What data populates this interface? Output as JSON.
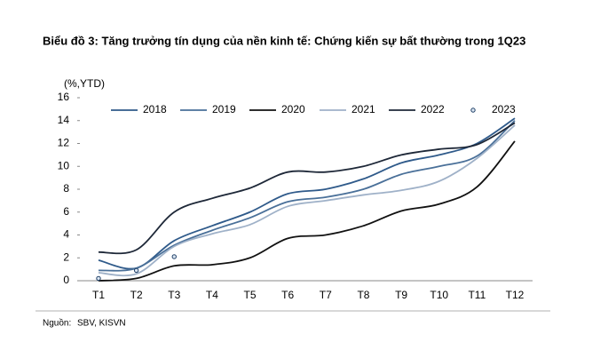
{
  "chart_data": {
    "type": "line",
    "title": "Biểu đồ 3: Tăng trưởng tín dụng của nền kinh tế: Chứng kiến sự bất thường trong 1Q23",
    "y_label": "(%,YTD)",
    "categories": [
      "T1",
      "T2",
      "T3",
      "T4",
      "T5",
      "T6",
      "T7",
      "T8",
      "T9",
      "T10",
      "T11",
      "T12"
    ],
    "series": [
      {
        "name": "2018",
        "color": "#2f5a8a",
        "style": "line",
        "values": [
          1.8,
          1.1,
          3.5,
          4.8,
          6.0,
          7.6,
          8.0,
          8.9,
          10.3,
          11.0,
          12.0,
          14.2
        ]
      },
      {
        "name": "2019",
        "color": "#4a7099",
        "style": "line",
        "values": [
          0.9,
          1.1,
          3.1,
          4.4,
          5.5,
          6.9,
          7.3,
          8.0,
          9.3,
          10.0,
          10.9,
          14.0
        ]
      },
      {
        "name": "2020",
        "color": "#111111",
        "style": "line",
        "values": [
          0.0,
          0.2,
          1.3,
          1.4,
          2.0,
          3.7,
          4.0,
          4.8,
          6.1,
          6.7,
          8.2,
          12.2
        ]
      },
      {
        "name": "2021",
        "color": "#9fb1c8",
        "style": "line",
        "values": [
          0.7,
          0.6,
          3.0,
          4.1,
          4.9,
          6.5,
          7.0,
          7.5,
          7.9,
          8.7,
          10.7,
          13.6
        ]
      },
      {
        "name": "2022",
        "color": "#1e2838",
        "style": "line",
        "values": [
          2.5,
          2.7,
          6.0,
          7.2,
          8.1,
          9.5,
          9.5,
          10.0,
          11.0,
          11.5,
          11.9,
          13.8
        ]
      },
      {
        "name": "2023",
        "color": "#1f3f66",
        "style": "marker",
        "values": [
          0.2,
          0.9,
          2.1,
          null,
          null,
          null,
          null,
          null,
          null,
          null,
          null,
          null
        ]
      }
    ],
    "ylim": [
      0,
      16
    ],
    "yticks": [
      0,
      2,
      4,
      6,
      8,
      10,
      12,
      14,
      16
    ],
    "grid": false,
    "legend": "top",
    "source_label": "Nguồn:",
    "source": "SBV, KISVN"
  }
}
